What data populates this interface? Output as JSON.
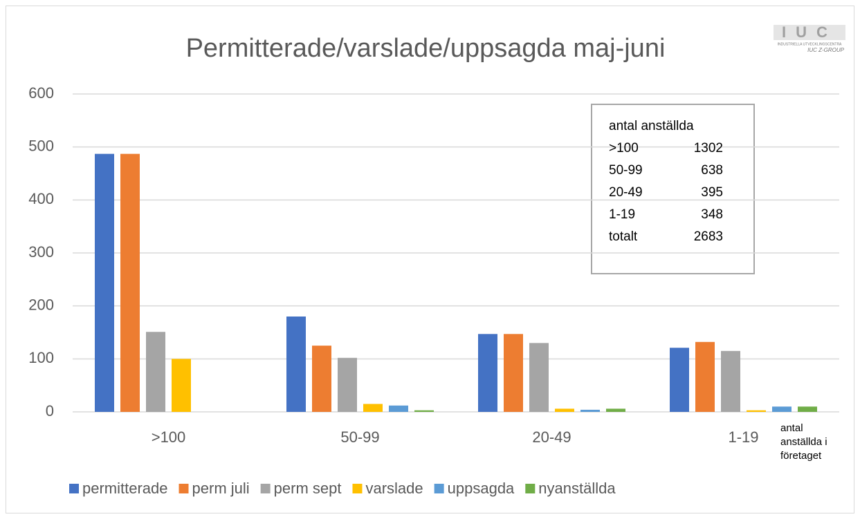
{
  "chart_data": {
    "type": "bar",
    "title": "Permitterade/varslade/uppsagda  maj-juni",
    "x_label": "antal anställda i företaget",
    "categories": [
      ">100",
      "50-99",
      "20-49",
      "1-19"
    ],
    "series": [
      {
        "name": "permitterade",
        "color": "#4472c4",
        "values": [
          487,
          180,
          147,
          121
        ]
      },
      {
        "name": "perm juli",
        "color": "#ed7d31",
        "values": [
          487,
          125,
          147,
          132
        ]
      },
      {
        "name": "perm sept",
        "color": "#a5a5a5",
        "values": [
          151,
          102,
          130,
          115
        ]
      },
      {
        "name": "varslade",
        "color": "#ffc000",
        "values": [
          100,
          15,
          6,
          3
        ]
      },
      {
        "name": "uppsagda",
        "color": "#5b9bd5",
        "values": [
          0,
          12,
          4,
          10
        ]
      },
      {
        "name": "nyanställda",
        "color": "#70ad47",
        "values": [
          0,
          3,
          6,
          10
        ]
      }
    ],
    "ylim": [
      0,
      600
    ],
    "yticks": [
      0,
      100,
      200,
      300,
      400,
      500,
      600
    ],
    "grid": true,
    "legend": "bottom",
    "annotation": {
      "title": "antal anställda",
      "rows": [
        [
          ">100",
          "1302"
        ],
        [
          "50-99",
          "638"
        ],
        [
          "20-49",
          "395"
        ],
        [
          "1-19",
          "348"
        ],
        [
          "totalt",
          "2683"
        ]
      ]
    },
    "logo": {
      "name": "IUC",
      "org": "INDUSTRIELLA UTVECKLINGSCENTRA",
      "tagline": "IUC Z-GROUP"
    }
  }
}
